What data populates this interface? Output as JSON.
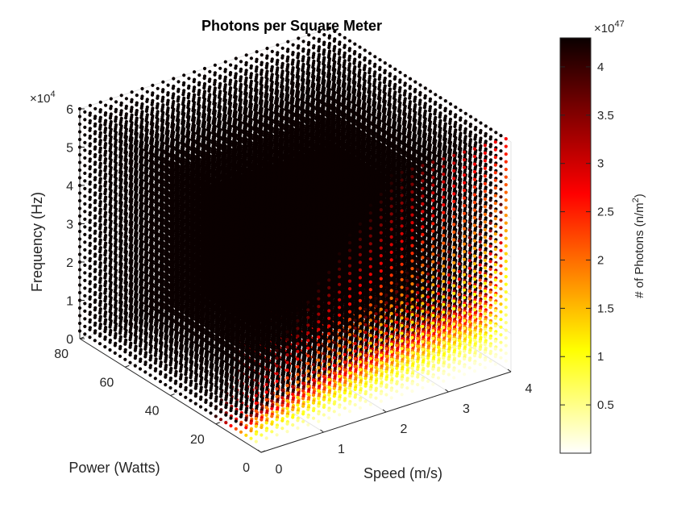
{
  "chart_data": {
    "type": "scatter3",
    "title": "Photons per Square Meter",
    "xlabel": "Speed (m/s)",
    "ylabel": "Power (Watts)",
    "zlabel": "Frequency (Hz)",
    "xlim": [
      0,
      4
    ],
    "ylim": [
      0,
      80
    ],
    "zlim": [
      0,
      60000
    ],
    "x_ticks": [
      "0",
      "1",
      "2",
      "3",
      "4"
    ],
    "y_ticks": [
      "0",
      "20",
      "40",
      "60",
      "80"
    ],
    "z_ticks": [
      "0",
      "1",
      "2",
      "3",
      "4",
      "5",
      "6"
    ],
    "z_exponent": "×10",
    "z_exponent_power": "4",
    "x_grid": {
      "start": 0,
      "stop": 4,
      "count": 24
    },
    "y_grid": {
      "start": 0,
      "stop": 80,
      "count": 36
    },
    "z_grid": {
      "start": 0,
      "stop": 60000,
      "count": 30
    },
    "color_model": "photons = 1.0e43 * power * frequency / (1 + speed)",
    "grid_on": true,
    "colormap": "hot",
    "colorbar": {
      "label": "# of Photons (n/m",
      "label_sup": "2",
      "label_end": ")",
      "ticks": [
        "0.5",
        "1",
        "1.5",
        "2",
        "2.5",
        "3",
        "3.5",
        "4"
      ],
      "tick_values": [
        0.5,
        1,
        1.5,
        2,
        2.5,
        3,
        3.5,
        4
      ],
      "clim": [
        0,
        4.3
      ],
      "exponent": "×10",
      "exponent_power": "47"
    }
  }
}
